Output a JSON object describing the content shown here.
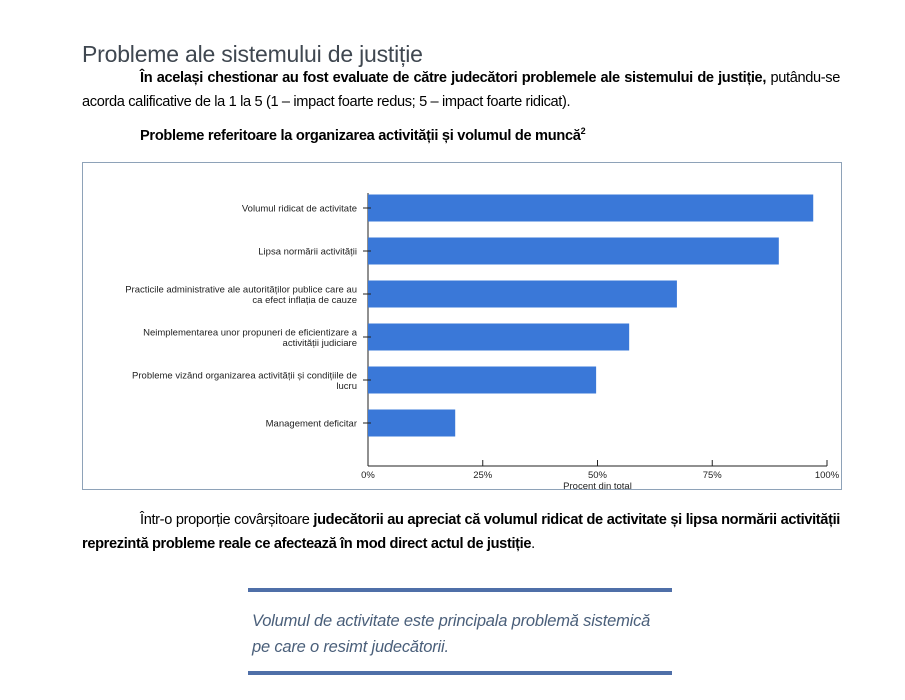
{
  "section_title": "Probleme ale sistemului de justiție",
  "paragraph1": {
    "bold": "În același chestionar au fost evaluate de către judecători problemele ale sistemului de justiție,",
    "normal": " putându-se acorda calificative de la 1 la 5 (1 – impact foarte redus; 5 – impact foarte ridicat)."
  },
  "chart_title": "Probleme referitoare la organizarea activității și volumul de muncă",
  "chart_title_footnote": "2",
  "chart_data": {
    "type": "bar",
    "orientation": "horizontal",
    "categories": [
      [
        "Volumul ridicat de activitate"
      ],
      [
        "Lipsa normării activității"
      ],
      [
        "Practicile administrative ale autorităților publice care au",
        "ca efect inflația de cauze"
      ],
      [
        "Neimplementarea unor propuneri de eficientizare a",
        "activității judiciare"
      ],
      [
        "Probleme vizând organizarea activității și condițiile de",
        "lucru"
      ],
      [
        "Management deficitar"
      ]
    ],
    "values": [
      97,
      89.5,
      67.3,
      56.9,
      49.7,
      19
    ],
    "xlabel": "Procent din total",
    "xlim": [
      0,
      100
    ],
    "xticks": [
      "0%",
      "25%",
      "50%",
      "75%",
      "100%"
    ],
    "bar_color": "#3a78d8",
    "grid": false
  },
  "paragraph2": {
    "normal1": "Într-o proporție covârșitoare ",
    "bold": "judecătorii au apreciat că volumul ridicat de activitate și lipsa normării activității reprezintă probleme reale ce afectează în mod direct actul de justiție",
    "normal2": "."
  },
  "pull_quote": "Volumul de activitate este principala problemă sistemică pe care o resimt judecătorii."
}
